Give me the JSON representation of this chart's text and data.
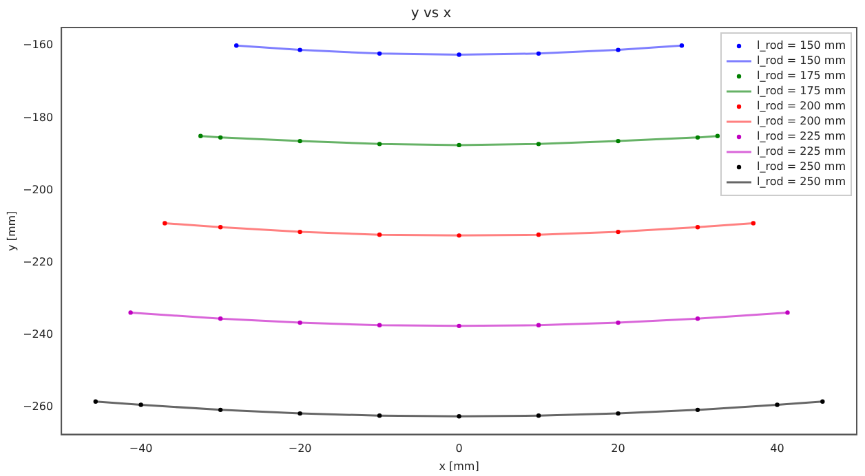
{
  "chart_data": {
    "type": "scatter",
    "title": "y vs x",
    "xlabel": "x [mm]",
    "ylabel": "y [mm]",
    "xlim": [
      -50,
      50
    ],
    "ylim": [
      -267.5,
      -155
    ],
    "xticks": [
      -40,
      -20,
      0,
      20,
      40
    ],
    "yticks": [
      -260,
      -240,
      -220,
      -200,
      -180,
      -160
    ],
    "grid": false,
    "legend": "top right",
    "marker": "circle",
    "line_style": "solid",
    "series": [
      {
        "name": "l_rod = 150 mm",
        "color": "#0000ff",
        "x": [
          -28,
          -20,
          -10,
          0,
          10,
          20,
          28
        ],
        "values": [
          -160,
          -161.2,
          -162.2,
          -162.5,
          -162.2,
          -161.2,
          -160
        ]
      },
      {
        "name": "l_rod = 150 mm",
        "type": "line",
        "marker": "none",
        "color": "#7f7fff",
        "x": [
          -28,
          -20,
          -10,
          0,
          10,
          20,
          28
        ],
        "values": [
          -160,
          -161.2,
          -162.2,
          -162.5,
          -162.2,
          -161.2,
          -160
        ]
      },
      {
        "name": "l_rod = 175 mm",
        "color": "#008000",
        "x": [
          -32.5,
          -30,
          -20,
          -10,
          0,
          10,
          20,
          30,
          32.5
        ],
        "values": [
          -185,
          -185.4,
          -186.4,
          -187.2,
          -187.5,
          -187.2,
          -186.4,
          -185.4,
          -185
        ]
      },
      {
        "name": "l_rod = 175 mm",
        "type": "line",
        "marker": "none",
        "color": "#66b266",
        "x": [
          -32.5,
          -30,
          -20,
          -10,
          0,
          10,
          20,
          30,
          32.5
        ],
        "values": [
          -185,
          -185.4,
          -186.4,
          -187.2,
          -187.5,
          -187.2,
          -186.4,
          -185.4,
          -185
        ]
      },
      {
        "name": "l_rod = 200 mm",
        "color": "#ff0000",
        "x": [
          -37,
          -30,
          -20,
          -10,
          0,
          10,
          20,
          30,
          37
        ],
        "values": [
          -209.1,
          -210.2,
          -211.5,
          -212.3,
          -212.5,
          -212.3,
          -211.5,
          -210.2,
          -209.1
        ]
      },
      {
        "name": "l_rod = 200 mm",
        "type": "line",
        "marker": "none",
        "color": "#ff8080",
        "x": [
          -37,
          -30,
          -20,
          -10,
          0,
          10,
          20,
          30,
          37
        ],
        "values": [
          -209.1,
          -210.2,
          -211.5,
          -212.3,
          -212.5,
          -212.3,
          -211.5,
          -210.2,
          -209.1
        ]
      },
      {
        "name": "l_rod = 225 mm",
        "color": "#c000c0",
        "x": [
          -41.3,
          -30,
          -20,
          -10,
          0,
          10,
          20,
          30,
          41.3
        ],
        "values": [
          -233.8,
          -235.5,
          -236.6,
          -237.3,
          -237.5,
          -237.3,
          -236.6,
          -235.5,
          -233.8
        ]
      },
      {
        "name": "l_rod = 225 mm",
        "type": "line",
        "marker": "none",
        "color": "#d966d9",
        "x": [
          -41.3,
          -30,
          -20,
          -10,
          0,
          10,
          20,
          30,
          41.3
        ],
        "values": [
          -233.8,
          -235.5,
          -236.6,
          -237.3,
          -237.5,
          -237.3,
          -236.6,
          -235.5,
          -233.8
        ]
      },
      {
        "name": "l_rod = 250 mm",
        "color": "#000000",
        "x": [
          -45.7,
          -40,
          -30,
          -20,
          -10,
          0,
          10,
          20,
          30,
          40,
          45.7
        ],
        "values": [
          -258.4,
          -259.3,
          -260.7,
          -261.7,
          -262.3,
          -262.5,
          -262.3,
          -261.7,
          -260.7,
          -259.3,
          -258.4
        ]
      },
      {
        "name": "l_rod = 250 mm",
        "type": "line",
        "marker": "none",
        "color": "#666666",
        "x": [
          -45.7,
          -40,
          -30,
          -20,
          -10,
          0,
          10,
          20,
          30,
          40,
          45.7
        ],
        "values": [
          -258.4,
          -259.3,
          -260.7,
          -261.7,
          -262.3,
          -262.5,
          -262.3,
          -261.7,
          -260.7,
          -259.3,
          -258.4
        ]
      }
    ]
  }
}
